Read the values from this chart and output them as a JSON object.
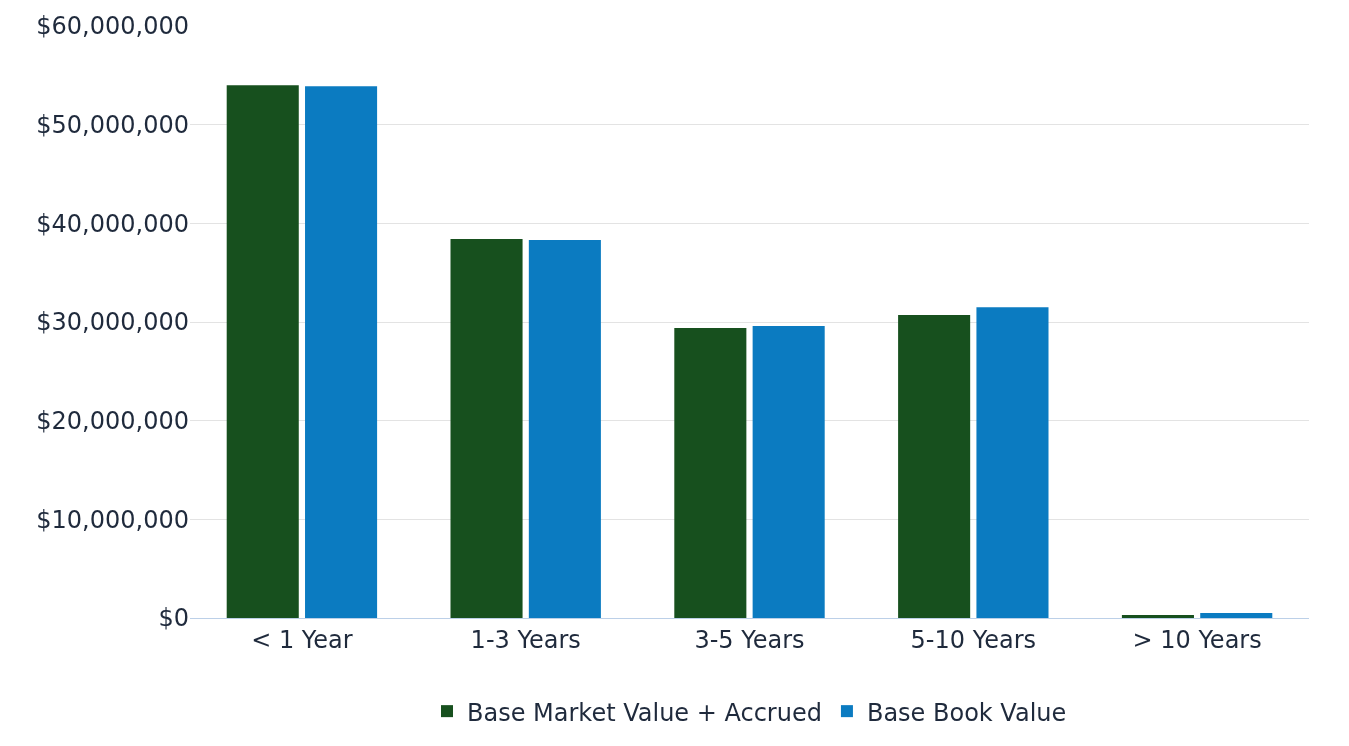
{
  "chart_data": {
    "type": "bar",
    "categories": [
      "< 1 Year",
      "1-3 Years",
      "3-5 Years",
      "5-10 Years",
      "> 10 Years"
    ],
    "series": [
      {
        "name": "Base Market Value + Accrued",
        "color": "#17501e",
        "values": [
          54000000,
          38400000,
          29400000,
          30700000,
          300000
        ]
      },
      {
        "name": "Base Book Value",
        "color": "#0b7bc1",
        "values": [
          53900000,
          38300000,
          29600000,
          31500000,
          500000
        ]
      }
    ],
    "ylim": [
      0,
      60000000
    ],
    "yticks": [
      {
        "value": 0,
        "label": "$0"
      },
      {
        "value": 10000000,
        "label": "$10,000,000"
      },
      {
        "value": 20000000,
        "label": "$20,000,000"
      },
      {
        "value": 30000000,
        "label": "$30,000,000"
      },
      {
        "value": 40000000,
        "label": "$40,000,000"
      },
      {
        "value": 50000000,
        "label": "$50,000,000"
      },
      {
        "value": 60000000,
        "label": "$60,000,000"
      }
    ],
    "grid": "y",
    "legend": "bottom"
  }
}
